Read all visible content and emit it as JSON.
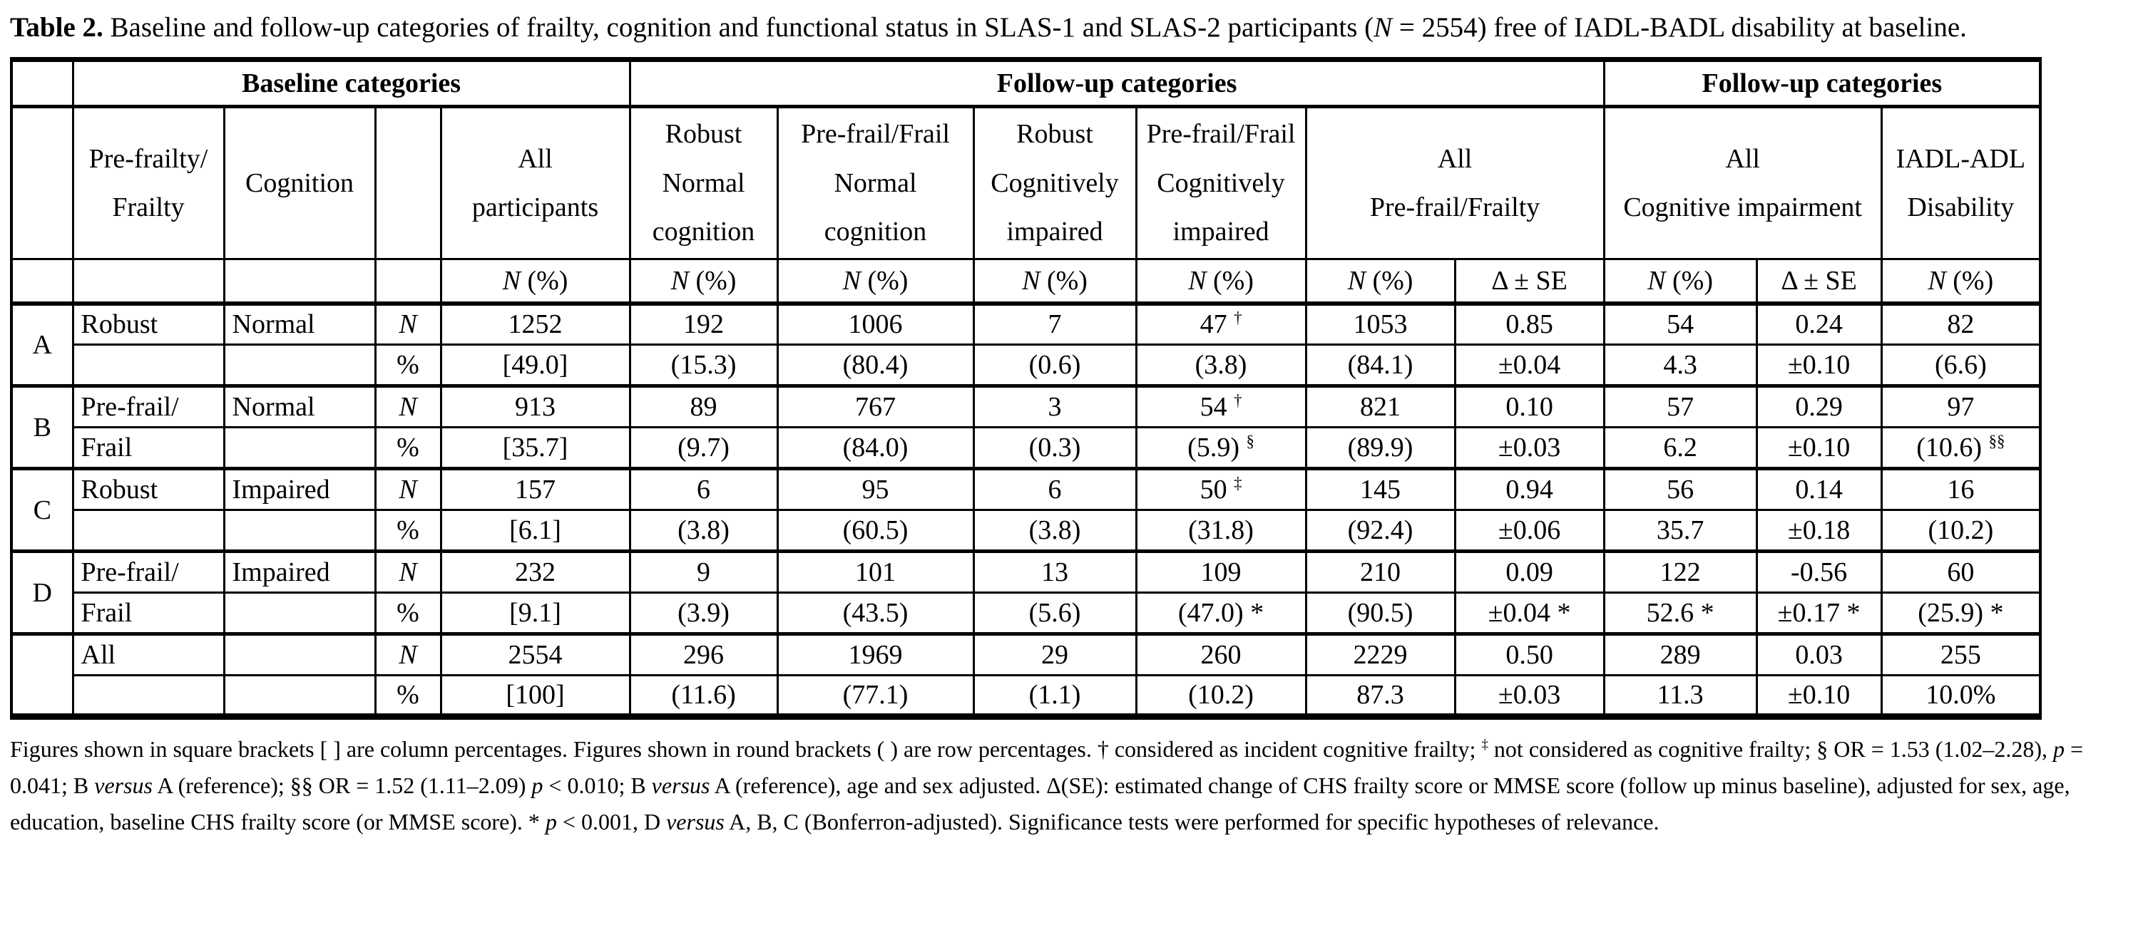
{
  "title": "**Table 2.** Baseline and follow-up categories of frailty, cognition and functional status in SLAS-1 and SLAS-2 participants (*N* = 2554) free of IADL-BADL disability at baseline.",
  "table": {
    "header_groups": [
      {
        "label": "",
        "span": 1
      },
      {
        "label": "Baseline categories",
        "span": 4
      },
      {
        "label": "Follow-up categories",
        "span": 6
      },
      {
        "label": "Follow-up categories",
        "span": 3
      }
    ],
    "columns": [
      {
        "label": "",
        "span": 1
      },
      {
        "label": "Pre-frailty/\nFrailty",
        "span": 1
      },
      {
        "label": "Cognition",
        "span": 1
      },
      {
        "label": "",
        "span": 1
      },
      {
        "label": "All\nparticipants",
        "span": 1
      },
      {
        "label": "Robust\nNormal\ncognition",
        "span": 1
      },
      {
        "label": "Pre-frail/Frail\nNormal\ncognition",
        "span": 1
      },
      {
        "label": "Robust\nCognitively\nimpaired",
        "span": 1
      },
      {
        "label": "Pre-frail/Frail\nCognitively\nimpaired",
        "span": 1
      },
      {
        "label": "All\nPre-frail/Frailty",
        "span": 2
      },
      {
        "label": "All\nCognitive impairment",
        "span": 2
      },
      {
        "label": "IADL-ADL\nDisability",
        "span": 1
      }
    ],
    "measure_row": [
      "",
      "",
      "",
      "",
      "*N* (%)",
      "*N* (%)",
      "*N* (%)",
      "*N* (%)",
      "*N* (%)",
      "*N* (%)",
      "Δ ± SE",
      "*N* (%)",
      "Δ ± SE",
      "*N* (%)"
    ],
    "groups": [
      {
        "letter": "A",
        "row_n": [
          "Robust",
          "Normal",
          "*N*",
          "1252",
          "192",
          "1006",
          "7",
          "47 ^†^",
          "1053",
          "0.85",
          "54",
          "0.24",
          "82"
        ],
        "row_pct": [
          "",
          "",
          "%",
          "[49.0]",
          "(15.3)",
          "(80.4)",
          "(0.6)",
          "(3.8)",
          "(84.1)",
          "±0.04",
          "4.3",
          "±0.10",
          "(6.6)"
        ]
      },
      {
        "letter": "B",
        "row_n": [
          "Pre-frail/",
          "Normal",
          "*N*",
          "913",
          "89",
          "767",
          "3",
          "54 ^†^",
          "821",
          "0.10",
          "57",
          "0.29",
          "97"
        ],
        "row_pct": [
          "Frail",
          "",
          "%",
          "[35.7]",
          "(9.7)",
          "(84.0)",
          "(0.3)",
          "(5.9) ^§^",
          "(89.9)",
          "±0.03",
          "6.2",
          "±0.10",
          "(10.6) ^§§^"
        ]
      },
      {
        "letter": "C",
        "row_n": [
          "Robust",
          "Impaired",
          "*N*",
          "157",
          "6",
          "95",
          "6",
          "50 ^‡^",
          "145",
          "0.94",
          "56",
          "0.14",
          "16"
        ],
        "row_pct": [
          "",
          "",
          "%",
          "[6.1]",
          "(3.8)",
          "(60.5)",
          "(3.8)",
          "(31.8)",
          "(92.4)",
          "±0.06",
          "35.7",
          "±0.18",
          "(10.2)"
        ]
      },
      {
        "letter": "D",
        "row_n": [
          "Pre-frail/",
          "Impaired",
          "*N*",
          "232",
          "9",
          "101",
          "13",
          "109",
          "210",
          "0.09",
          "122",
          "-0.56",
          "60"
        ],
        "row_pct": [
          "Frail",
          "",
          "%",
          "[9.1]",
          "(3.9)",
          "(43.5)",
          "(5.6)",
          "(47.0) {ast}",
          "(90.5)",
          "±0.04 {ast}",
          "52.6 {ast}",
          "±0.17 {ast}",
          "(25.9) {ast}"
        ]
      },
      {
        "letter": "",
        "row_n": [
          "All",
          "",
          "*N*",
          "2554",
          "296",
          "1969",
          "29",
          "260",
          "2229",
          "0.50",
          "289",
          "0.03",
          "255"
        ],
        "row_pct": [
          "",
          "",
          "%",
          "[100]",
          "(11.6)",
          "(77.1)",
          "(1.1)",
          "(10.2)",
          "87.3",
          "±0.03",
          "11.3",
          "±0.10",
          "10.0%"
        ]
      }
    ]
  },
  "footnote": "Figures shown in square brackets [ ] are column percentages. Figures shown in round brackets ( ) are row percentages. † considered as incident cognitive frailty; ^‡^ not considered as cognitive frailty; § OR = 1.53 (1.02–2.28), *p* = 0.041; B *versus* A (reference); §§ OR = 1.52 (1.11–2.09) *p* < 0.010; B *versus* A (reference), age and sex adjusted. Δ(SE): estimated change of CHS frailty score or MMSE score (follow up minus baseline), adjusted for sex, age, education, baseline CHS frailty score (or MMSE score). {ast} *p* < 0.001, D *versus* A, B, C (Bonferron-adjusted). Significance tests were performed for specific hypotheses of relevance."
}
